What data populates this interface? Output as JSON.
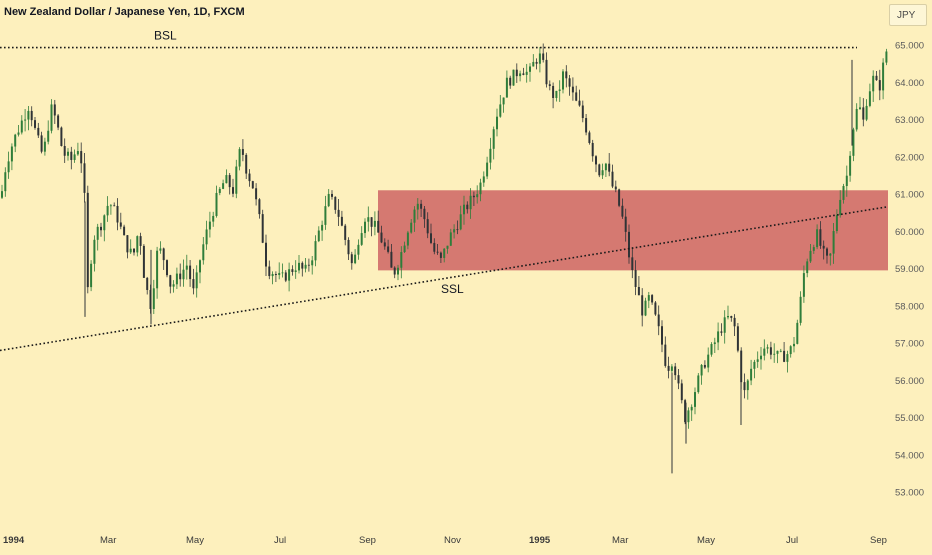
{
  "title": "New Zealand Dollar / Japanese Yen, 1D, FXCM",
  "currency": "JPY",
  "colors": {
    "background": "#fdf0bd",
    "up": "#2f7d3a",
    "down": "#2f3336",
    "zone": "#d2706a",
    "line": "#1a1a1a"
  },
  "chart_data": {
    "type": "candlestick",
    "x_ticks": [
      "1994",
      "Mar",
      "May",
      "Jul",
      "Sep",
      "Nov",
      "1995",
      "Mar",
      "May",
      "Jul",
      "Sep"
    ],
    "y_ticks": [
      "53.000",
      "54.000",
      "55.000",
      "56.000",
      "57.000",
      "58.000",
      "59.000",
      "60.000",
      "61.000",
      "62.000",
      "63.000",
      "64.000",
      "65.000"
    ],
    "ylim": [
      52.4,
      65.3
    ],
    "price_path": [
      [
        0,
        60.9
      ],
      [
        5,
        61.8
      ],
      [
        12,
        62.4
      ],
      [
        20,
        62.9
      ],
      [
        28,
        63.4
      ],
      [
        35,
        62.6
      ],
      [
        42,
        62.0
      ],
      [
        50,
        63.3
      ],
      [
        55,
        63.0
      ],
      [
        62,
        62.1
      ],
      [
        70,
        61.9
      ],
      [
        78,
        62.3
      ],
      [
        83,
        61.4
      ],
      [
        86,
        58.2
      ],
      [
        92,
        59.8
      ],
      [
        100,
        60.2
      ],
      [
        108,
        60.8
      ],
      [
        116,
        60.4
      ],
      [
        124,
        59.7
      ],
      [
        132,
        59.3
      ],
      [
        138,
        60.1
      ],
      [
        144,
        58.6
      ],
      [
        150,
        58.0
      ],
      [
        157,
        59.6
      ],
      [
        164,
        59.2
      ],
      [
        170,
        58.5
      ],
      [
        178,
        58.8
      ],
      [
        186,
        59.1
      ],
      [
        193,
        58.3
      ],
      [
        200,
        59.4
      ],
      [
        208,
        60.2
      ],
      [
        216,
        60.9
      ],
      [
        224,
        61.4
      ],
      [
        232,
        61.1
      ],
      [
        240,
        62.3
      ],
      [
        246,
        61.6
      ],
      [
        252,
        61.2
      ],
      [
        260,
        60.1
      ],
      [
        266,
        59.0
      ],
      [
        272,
        58.9
      ],
      [
        280,
        58.7
      ],
      [
        288,
        58.9
      ],
      [
        296,
        59.1
      ],
      [
        304,
        58.9
      ],
      [
        312,
        59.4
      ],
      [
        320,
        60.2
      ],
      [
        328,
        60.9
      ],
      [
        336,
        60.6
      ],
      [
        344,
        59.8
      ],
      [
        352,
        59.0
      ],
      [
        358,
        59.9
      ],
      [
        364,
        60.4
      ],
      [
        372,
        60.2
      ],
      [
        380,
        59.8
      ],
      [
        386,
        59.4
      ],
      [
        392,
        58.8
      ],
      [
        400,
        59.4
      ],
      [
        408,
        60.2
      ],
      [
        416,
        60.8
      ],
      [
        424,
        60.3
      ],
      [
        432,
        59.5
      ],
      [
        440,
        59.2
      ],
      [
        448,
        59.8
      ],
      [
        456,
        60.2
      ],
      [
        464,
        60.6
      ],
      [
        472,
        60.9
      ],
      [
        480,
        61.3
      ],
      [
        488,
        62.2
      ],
      [
        494,
        63.0
      ],
      [
        500,
        63.5
      ],
      [
        506,
        64.0
      ],
      [
        514,
        64.2
      ],
      [
        520,
        64.4
      ],
      [
        528,
        64.2
      ],
      [
        534,
        64.6
      ],
      [
        540,
        64.7
      ],
      [
        545,
        64.1
      ],
      [
        550,
        63.7
      ],
      [
        556,
        63.6
      ],
      [
        562,
        64.2
      ],
      [
        568,
        63.9
      ],
      [
        574,
        63.5
      ],
      [
        580,
        63.2
      ],
      [
        586,
        62.7
      ],
      [
        592,
        62.1
      ],
      [
        598,
        61.6
      ],
      [
        604,
        61.9
      ],
      [
        610,
        61.3
      ],
      [
        616,
        60.9
      ],
      [
        621,
        60.4
      ],
      [
        626,
        59.7
      ],
      [
        630,
        59.0
      ],
      [
        636,
        58.4
      ],
      [
        642,
        57.8
      ],
      [
        648,
        58.2
      ],
      [
        654,
        57.7
      ],
      [
        660,
        57.1
      ],
      [
        666,
        56.3
      ],
      [
        672,
        56.6
      ],
      [
        678,
        55.7
      ],
      [
        684,
        55.0
      ],
      [
        690,
        55.4
      ],
      [
        696,
        55.9
      ],
      [
        704,
        56.5
      ],
      [
        712,
        56.9
      ],
      [
        720,
        57.4
      ],
      [
        728,
        57.7
      ],
      [
        734,
        57.4
      ],
      [
        740,
        56.1
      ],
      [
        744,
        55.6
      ],
      [
        750,
        56.3
      ],
      [
        756,
        56.6
      ],
      [
        762,
        56.9
      ],
      [
        770,
        56.8
      ],
      [
        778,
        56.6
      ],
      [
        786,
        56.7
      ],
      [
        792,
        56.9
      ],
      [
        798,
        57.8
      ],
      [
        804,
        59.1
      ],
      [
        810,
        59.6
      ],
      [
        816,
        59.9
      ],
      [
        822,
        59.4
      ],
      [
        828,
        59.1
      ],
      [
        834,
        60.2
      ],
      [
        840,
        61.1
      ],
      [
        846,
        61.5
      ],
      [
        850,
        62.4
      ],
      [
        854,
        63.1
      ],
      [
        858,
        63.4
      ],
      [
        862,
        62.9
      ],
      [
        866,
        63.6
      ],
      [
        872,
        64.1
      ],
      [
        878,
        63.8
      ],
      [
        884,
        64.7
      ],
      [
        888,
        65.1
      ]
    ],
    "annotations": [
      {
        "label": "BSL",
        "type": "horizontal-dotted",
        "price": 64.93,
        "from_index": 0,
        "to_index": 857
      },
      {
        "label": "SSL",
        "type": "trendline-dotted",
        "points": [
          [
            0,
            56.8
          ],
          [
            886,
            60.65
          ]
        ]
      },
      {
        "label": "",
        "type": "zone",
        "price_top": 61.1,
        "price_bottom": 58.95,
        "from_index": 378,
        "to_index": 888
      }
    ]
  }
}
